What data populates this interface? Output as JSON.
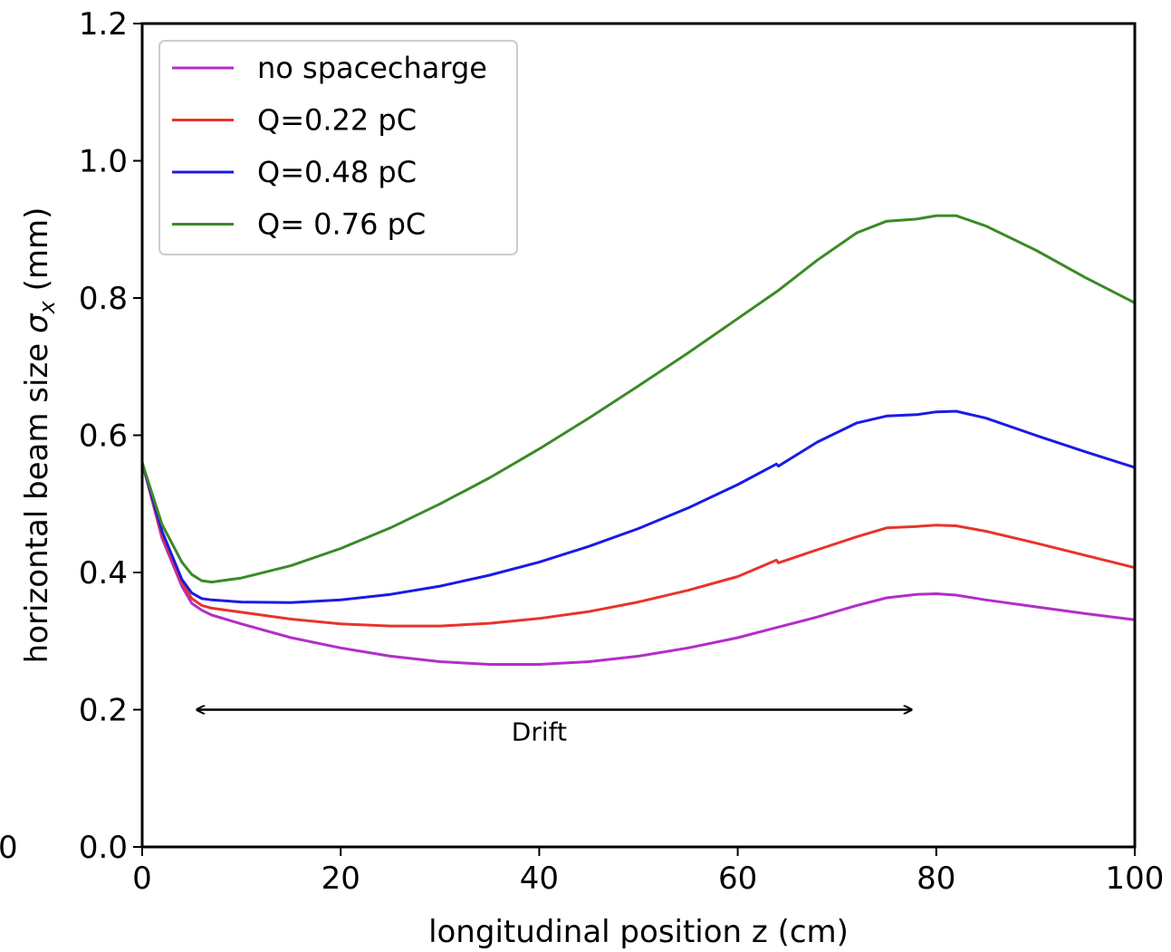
{
  "chart_data": {
    "type": "line",
    "xlabel": "longitudinal position z (cm)",
    "ylabel": "horizontal beam size σx (mm)",
    "ylabel_main": "horizontal beam size ",
    "ylabel_sigma": "σ",
    "ylabel_sub": "x",
    "ylabel_unit": " (mm)",
    "xlim": [
      0,
      100
    ],
    "ylim": [
      0,
      1.2
    ],
    "x_ticks": [
      "0",
      "20",
      "40",
      "60",
      "80",
      "100"
    ],
    "y_ticks": [
      "0.0",
      "0.2",
      "0.4",
      "0.6",
      "0.8",
      "1.0",
      "1.2"
    ],
    "stray_tick_label": "0",
    "grid": false,
    "legend_position": "top-left",
    "series": [
      {
        "name": "no spacecharge",
        "color": "#b22ec8",
        "x": [
          0,
          2,
          4,
          5,
          6,
          7,
          10,
          15,
          20,
          25,
          30,
          35,
          40,
          45,
          50,
          55,
          60,
          64,
          68,
          72,
          75,
          78,
          80,
          82,
          85,
          90,
          95,
          100
        ],
        "y": [
          0.56,
          0.45,
          0.38,
          0.355,
          0.345,
          0.338,
          0.325,
          0.305,
          0.29,
          0.278,
          0.27,
          0.266,
          0.266,
          0.27,
          0.278,
          0.29,
          0.305,
          0.32,
          0.335,
          0.352,
          0.363,
          0.368,
          0.369,
          0.367,
          0.36,
          0.35,
          0.34,
          0.331
        ]
      },
      {
        "name": "Q=0.22 pC",
        "color": "#e8342a",
        "x": [
          0,
          2,
          4,
          5,
          6,
          7,
          10,
          15,
          20,
          25,
          30,
          35,
          40,
          45,
          50,
          55,
          60,
          63.9,
          64.1,
          68,
          72,
          75,
          78,
          80,
          82,
          85,
          90,
          95,
          100
        ],
        "y": [
          0.56,
          0.455,
          0.385,
          0.362,
          0.352,
          0.348,
          0.342,
          0.332,
          0.325,
          0.322,
          0.322,
          0.326,
          0.333,
          0.343,
          0.357,
          0.374,
          0.394,
          0.418,
          0.414,
          0.433,
          0.452,
          0.465,
          0.467,
          0.469,
          0.468,
          0.46,
          0.443,
          0.425,
          0.407
        ]
      },
      {
        "name": "Q=0.48 pC",
        "color": "#1a1ae6",
        "x": [
          0,
          2,
          4,
          5,
          6,
          7,
          10,
          15,
          20,
          25,
          30,
          35,
          40,
          45,
          50,
          55,
          60,
          63.9,
          64.1,
          68,
          72,
          75,
          78,
          80,
          82,
          85,
          90,
          95,
          100
        ],
        "y": [
          0.56,
          0.46,
          0.39,
          0.37,
          0.362,
          0.36,
          0.357,
          0.356,
          0.36,
          0.368,
          0.38,
          0.396,
          0.415,
          0.438,
          0.464,
          0.494,
          0.528,
          0.558,
          0.555,
          0.59,
          0.618,
          0.628,
          0.63,
          0.634,
          0.635,
          0.625,
          0.6,
          0.576,
          0.553
        ]
      },
      {
        "name": "Q= 0.76 pC",
        "color": "#3b8a26",
        "x": [
          0,
          2,
          4,
          5,
          6,
          7,
          10,
          15,
          20,
          25,
          30,
          35,
          40,
          45,
          50,
          55,
          60,
          64,
          68,
          72,
          75,
          78,
          80,
          82,
          85,
          90,
          95,
          100
        ],
        "y": [
          0.56,
          0.47,
          0.415,
          0.397,
          0.388,
          0.386,
          0.392,
          0.41,
          0.435,
          0.465,
          0.5,
          0.538,
          0.58,
          0.625,
          0.672,
          0.72,
          0.77,
          0.81,
          0.855,
          0.895,
          0.912,
          0.915,
          0.92,
          0.92,
          0.905,
          0.87,
          0.83,
          0.793
        ]
      }
    ],
    "annotations": [
      {
        "text": "Drift",
        "type": "double-arrow",
        "x_start": 5.5,
        "x_end": 77.5,
        "y": 0.2,
        "label_x": 40,
        "label_y": 0.155
      }
    ]
  }
}
